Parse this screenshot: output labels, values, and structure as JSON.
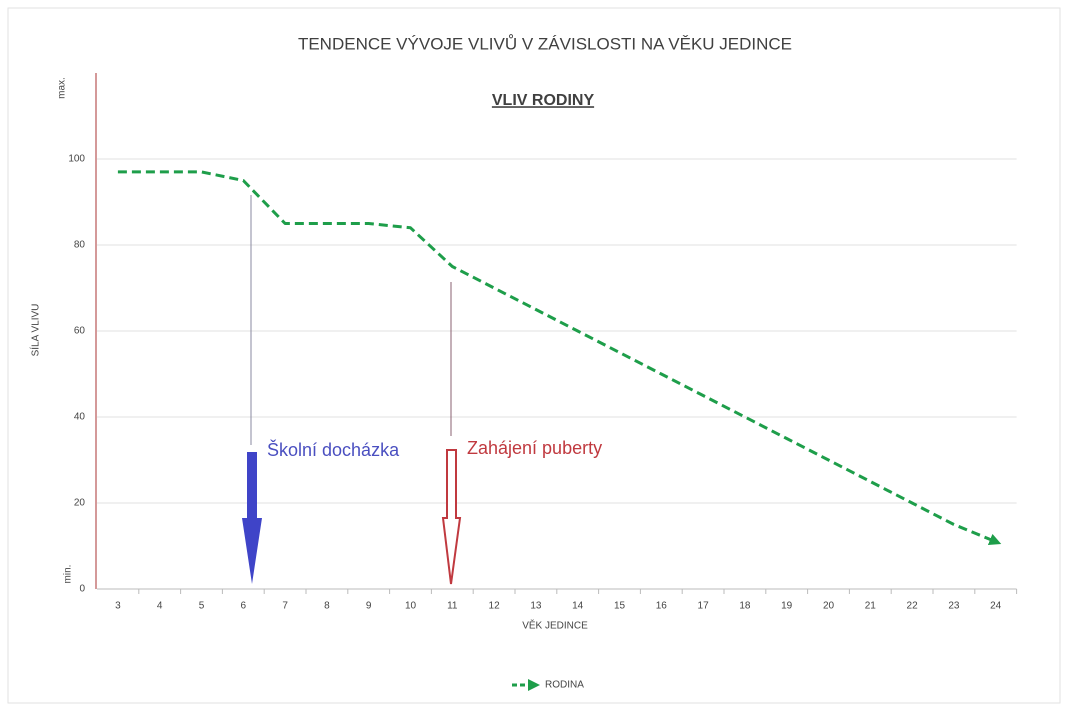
{
  "chart_data": {
    "type": "line",
    "title": "TENDENCE VÝVOJE VLIVŮ V ZÁVISLOSTI NA VĚKU JEDINCE",
    "subtitle": "VLIV RODINY",
    "xlabel": "VĚK JEDINCE",
    "ylabel": "SÍLA VLIVU",
    "y_top_label": "max.",
    "y_bottom_label": "min.",
    "annotations": [
      "Školní docházka",
      "Zahájení puberty"
    ],
    "x": [
      3,
      4,
      5,
      6,
      7,
      8,
      9,
      10,
      11,
      12,
      13,
      14,
      15,
      16,
      17,
      18,
      19,
      20,
      21,
      22,
      23,
      24
    ],
    "series": [
      {
        "name": "RODINA",
        "color": "#1e9e4a",
        "values": [
          97,
          97,
          97,
          95,
          85,
          85,
          85,
          84,
          75,
          70,
          65,
          60,
          55,
          50,
          45,
          40,
          35,
          30,
          25,
          20,
          15,
          11
        ]
      }
    ],
    "xlim": [
      2.5,
      24.5
    ],
    "xticks": [
      3,
      4,
      5,
      6,
      7,
      8,
      9,
      10,
      11,
      12,
      13,
      14,
      15,
      16,
      17,
      18,
      19,
      20,
      21,
      22,
      23,
      24
    ],
    "ylim": [
      0,
      120
    ],
    "yticks": [
      0,
      20,
      40,
      60,
      80,
      100
    ],
    "grid": true,
    "legend": "bottom"
  }
}
